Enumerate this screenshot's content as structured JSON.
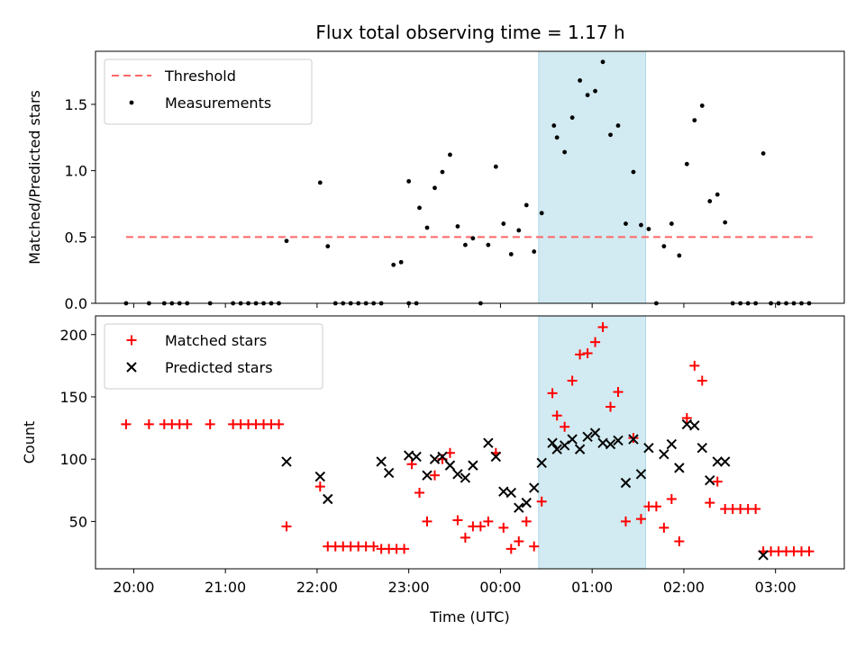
{
  "title": "Flux total observing time = 1.17 h",
  "chart_data": [
    {
      "type": "scatter",
      "ylabel": "Matched/Predicted stars",
      "ylim": [
        0,
        1.9
      ],
      "yticks": [
        0.0,
        0.5,
        1.0,
        1.5
      ],
      "ytick_labels": [
        "0.0",
        "0.5",
        "1.0",
        "1.5"
      ],
      "xlim": [
        "19:35",
        "03:45"
      ],
      "legend_placement": "upper-left",
      "highlight_span": {
        "start": "00:25",
        "end": "01:35",
        "color": "#add8e6"
      },
      "threshold": {
        "name": "Threshold",
        "value": 0.5,
        "from": "19:55",
        "to": "03:25",
        "color": "#ff6666",
        "style": "dashed"
      },
      "series": [
        {
          "name": "Measurements",
          "marker": "dot",
          "color": "#000000",
          "points": [
            [
              "19:55",
              0.0
            ],
            [
              "20:10",
              0.0
            ],
            [
              "20:20",
              0.0
            ],
            [
              "20:25",
              0.0
            ],
            [
              "20:30",
              0.0
            ],
            [
              "20:35",
              0.0
            ],
            [
              "20:50",
              0.0
            ],
            [
              "21:05",
              0.0
            ],
            [
              "21:10",
              0.0
            ],
            [
              "21:15",
              0.0
            ],
            [
              "21:20",
              0.0
            ],
            [
              "21:25",
              0.0
            ],
            [
              "21:30",
              0.0
            ],
            [
              "21:35",
              0.0
            ],
            [
              "21:40",
              0.47
            ],
            [
              "22:02",
              0.91
            ],
            [
              "22:07",
              0.43
            ],
            [
              "22:12",
              0.0
            ],
            [
              "22:17",
              0.0
            ],
            [
              "22:22",
              0.0
            ],
            [
              "22:27",
              0.0
            ],
            [
              "22:32",
              0.0
            ],
            [
              "22:37",
              0.0
            ],
            [
              "22:42",
              0.0
            ],
            [
              "22:50",
              0.29
            ],
            [
              "22:55",
              0.31
            ],
            [
              "23:00",
              0.0
            ],
            [
              "23:05",
              0.0
            ],
            [
              "23:00",
              0.92
            ],
            [
              "23:07",
              0.72
            ],
            [
              "23:12",
              0.57
            ],
            [
              "23:17",
              0.87
            ],
            [
              "23:22",
              0.99
            ],
            [
              "23:27",
              1.12
            ],
            [
              "23:32",
              0.58
            ],
            [
              "23:37",
              0.44
            ],
            [
              "23:42",
              0.49
            ],
            [
              "23:47",
              0.0
            ],
            [
              "23:52",
              0.44
            ],
            [
              "23:57",
              1.03
            ],
            [
              "00:02",
              0.6
            ],
            [
              "00:07",
              0.37
            ],
            [
              "00:12",
              0.55
            ],
            [
              "00:17",
              0.74
            ],
            [
              "00:22",
              0.39
            ],
            [
              "00:27",
              0.68
            ],
            [
              "00:35",
              1.34
            ],
            [
              "00:37",
              1.25
            ],
            [
              "00:42",
              1.14
            ],
            [
              "00:47",
              1.4
            ],
            [
              "00:52",
              1.68
            ],
            [
              "00:57",
              1.57
            ],
            [
              "01:02",
              1.6
            ],
            [
              "01:07",
              1.82
            ],
            [
              "01:12",
              1.27
            ],
            [
              "01:17",
              1.34
            ],
            [
              "01:22",
              0.6
            ],
            [
              "01:27",
              0.99
            ],
            [
              "01:32",
              0.59
            ],
            [
              "01:37",
              0.56
            ],
            [
              "01:42",
              0.0
            ],
            [
              "01:47",
              0.43
            ],
            [
              "01:52",
              0.6
            ],
            [
              "01:57",
              0.36
            ],
            [
              "02:02",
              1.05
            ],
            [
              "02:07",
              1.38
            ],
            [
              "02:12",
              1.49
            ],
            [
              "02:17",
              0.77
            ],
            [
              "02:22",
              0.82
            ],
            [
              "02:27",
              0.61
            ],
            [
              "02:32",
              0.0
            ],
            [
              "02:37",
              0.0
            ],
            [
              "02:42",
              0.0
            ],
            [
              "02:47",
              0.0
            ],
            [
              "02:52",
              1.13
            ],
            [
              "02:57",
              0.0
            ],
            [
              "03:02",
              0.0
            ],
            [
              "03:07",
              0.0
            ],
            [
              "03:12",
              0.0
            ],
            [
              "03:17",
              0.0
            ],
            [
              "03:22",
              0.0
            ]
          ]
        }
      ]
    },
    {
      "type": "scatter",
      "ylabel": "Count",
      "xlabel": "Time (UTC)",
      "ylim": [
        12,
        215
      ],
      "yticks": [
        50,
        100,
        150,
        200
      ],
      "ytick_labels": [
        "50",
        "100",
        "150",
        "200"
      ],
      "xlim": [
        "19:35",
        "03:45"
      ],
      "xticks": [
        "20:00",
        "21:00",
        "22:00",
        "23:00",
        "00:00",
        "01:00",
        "02:00",
        "03:00"
      ],
      "legend_placement": "upper-left",
      "highlight_span": {
        "start": "00:25",
        "end": "01:35",
        "color": "#add8e6"
      },
      "series": [
        {
          "name": "Matched stars",
          "marker": "plus",
          "color": "#ff0000",
          "points": [
            [
              "19:55",
              128
            ],
            [
              "20:10",
              128
            ],
            [
              "20:20",
              128
            ],
            [
              "20:25",
              128
            ],
            [
              "20:30",
              128
            ],
            [
              "20:35",
              128
            ],
            [
              "20:50",
              128
            ],
            [
              "21:05",
              128
            ],
            [
              "21:10",
              128
            ],
            [
              "21:15",
              128
            ],
            [
              "21:20",
              128
            ],
            [
              "21:25",
              128
            ],
            [
              "21:30",
              128
            ],
            [
              "21:35",
              128
            ],
            [
              "21:40",
              46
            ],
            [
              "22:02",
              78
            ],
            [
              "22:07",
              30
            ],
            [
              "22:12",
              30
            ],
            [
              "22:17",
              30
            ],
            [
              "22:22",
              30
            ],
            [
              "22:27",
              30
            ],
            [
              "22:32",
              30
            ],
            [
              "22:37",
              30
            ],
            [
              "22:42",
              28
            ],
            [
              "22:47",
              28
            ],
            [
              "22:52",
              28
            ],
            [
              "22:57",
              28
            ],
            [
              "23:02",
              96
            ],
            [
              "23:07",
              73
            ],
            [
              "23:12",
              50
            ],
            [
              "23:17",
              87
            ],
            [
              "23:22",
              100
            ],
            [
              "23:27",
              105
            ],
            [
              "23:32",
              51
            ],
            [
              "23:37",
              37
            ],
            [
              "23:42",
              46
            ],
            [
              "23:47",
              46
            ],
            [
              "23:52",
              50
            ],
            [
              "23:57",
              105
            ],
            [
              "00:02",
              45
            ],
            [
              "00:07",
              28
            ],
            [
              "00:12",
              34
            ],
            [
              "00:17",
              50
            ],
            [
              "00:22",
              30
            ],
            [
              "00:27",
              66
            ],
            [
              "00:34",
              153
            ],
            [
              "00:37",
              135
            ],
            [
              "00:42",
              126
            ],
            [
              "00:47",
              163
            ],
            [
              "00:52",
              184
            ],
            [
              "00:57",
              185
            ],
            [
              "01:02",
              194
            ],
            [
              "01:07",
              206
            ],
            [
              "01:12",
              142
            ],
            [
              "01:17",
              154
            ],
            [
              "01:22",
              50
            ],
            [
              "01:27",
              117
            ],
            [
              "01:32",
              52
            ],
            [
              "01:37",
              62
            ],
            [
              "01:42",
              62
            ],
            [
              "01:47",
              45
            ],
            [
              "01:52",
              68
            ],
            [
              "01:57",
              34
            ],
            [
              "02:02",
              133
            ],
            [
              "02:07",
              175
            ],
            [
              "02:12",
              163
            ],
            [
              "02:17",
              65
            ],
            [
              "02:22",
              82
            ],
            [
              "02:27",
              60
            ],
            [
              "02:32",
              60
            ],
            [
              "02:37",
              60
            ],
            [
              "02:42",
              60
            ],
            [
              "02:47",
              60
            ],
            [
              "02:52",
              26
            ],
            [
              "02:57",
              26
            ],
            [
              "03:02",
              26
            ],
            [
              "03:07",
              26
            ],
            [
              "03:12",
              26
            ],
            [
              "03:17",
              26
            ],
            [
              "03:22",
              26
            ]
          ]
        },
        {
          "name": "Predicted stars",
          "marker": "x",
          "color": "#000000",
          "points": [
            [
              "21:40",
              98
            ],
            [
              "22:02",
              86
            ],
            [
              "22:07",
              68
            ],
            [
              "22:42",
              98
            ],
            [
              "22:47",
              89
            ],
            [
              "23:00",
              103
            ],
            [
              "23:05",
              102
            ],
            [
              "23:12",
              87
            ],
            [
              "23:17",
              100
            ],
            [
              "23:22",
              102
            ],
            [
              "23:27",
              95
            ],
            [
              "23:32",
              88
            ],
            [
              "23:37",
              85
            ],
            [
              "23:42",
              95
            ],
            [
              "23:52",
              113
            ],
            [
              "23:57",
              102
            ],
            [
              "00:02",
              74
            ],
            [
              "00:07",
              73
            ],
            [
              "00:12",
              61
            ],
            [
              "00:17",
              65
            ],
            [
              "00:22",
              77
            ],
            [
              "00:27",
              97
            ],
            [
              "00:34",
              113
            ],
            [
              "00:37",
              108
            ],
            [
              "00:42",
              111
            ],
            [
              "00:47",
              116
            ],
            [
              "00:52",
              108
            ],
            [
              "00:57",
              118
            ],
            [
              "01:02",
              121
            ],
            [
              "01:07",
              113
            ],
            [
              "01:12",
              112
            ],
            [
              "01:17",
              115
            ],
            [
              "01:22",
              81
            ],
            [
              "01:27",
              116
            ],
            [
              "01:32",
              88
            ],
            [
              "01:37",
              109
            ],
            [
              "01:47",
              104
            ],
            [
              "01:52",
              112
            ],
            [
              "01:57",
              93
            ],
            [
              "02:02",
              128
            ],
            [
              "02:07",
              127
            ],
            [
              "02:12",
              109
            ],
            [
              "02:17",
              83
            ],
            [
              "02:22",
              98
            ],
            [
              "02:27",
              98
            ],
            [
              "02:52",
              23
            ]
          ]
        }
      ]
    }
  ]
}
